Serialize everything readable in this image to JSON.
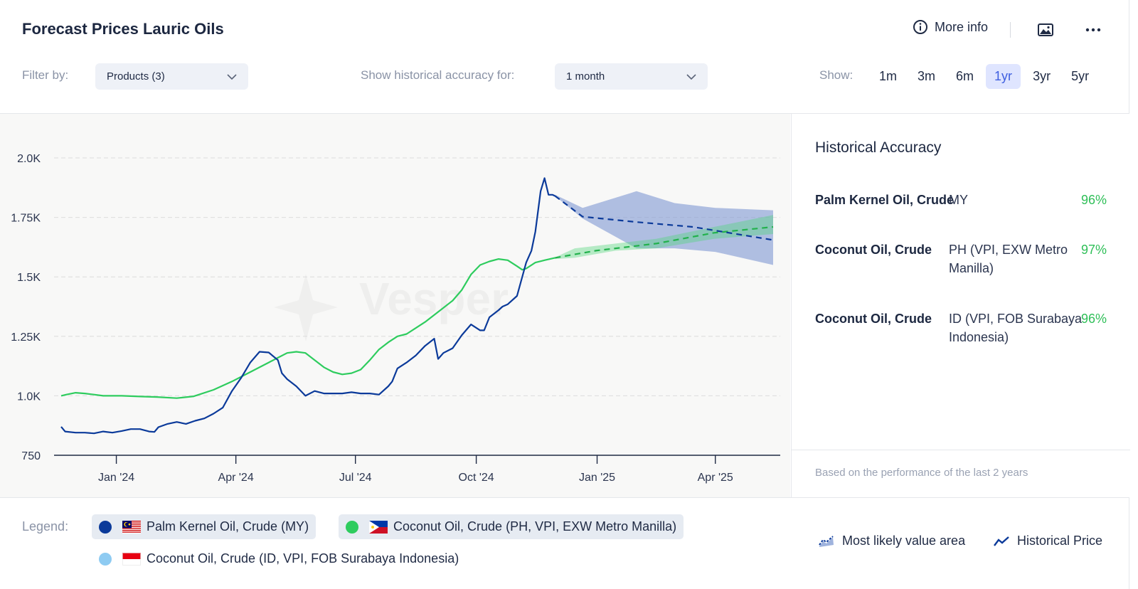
{
  "header": {
    "title": "Forecast Prices Lauric Oils",
    "more_info_label": "More info"
  },
  "filters": {
    "filter_by_label": "Filter by:",
    "products_value": "Products (3)",
    "accuracy_label": "Show historical accuracy for:",
    "accuracy_value": "1 month",
    "show_label": "Show:",
    "ranges": [
      "1m",
      "3m",
      "6m",
      "1yr",
      "3yr",
      "5yr"
    ],
    "active_range": "1yr"
  },
  "watermark": "Vesper",
  "accuracy_panel": {
    "title": "Historical Accuracy",
    "rows": [
      {
        "product": "Palm Kernel Oil, Crude",
        "region": "MY",
        "value": "96%"
      },
      {
        "product": "Coconut Oil, Crude",
        "region": "PH (VPI, EXW Metro Manilla)",
        "value": "97%"
      },
      {
        "product": "Coconut Oil, Crude",
        "region": "ID (VPI, FOB Surabaya Indonesia)",
        "value": "96%"
      }
    ],
    "footnote": "Based on the performance of the last 2 years"
  },
  "legend": {
    "label": "Legend:",
    "items": [
      {
        "label": "Palm Kernel Oil, Crude (MY)",
        "color": "#0b3a9a",
        "selected": true,
        "flag": "malaysia-flag"
      },
      {
        "label": "Coconut Oil, Crude (PH, VPI, EXW Metro Manilla)",
        "color": "#2ecc5e",
        "selected": true,
        "flag": "philippines-flag"
      },
      {
        "label": "Coconut Oil, Crude (ID, VPI, FOB Surabaya Indonesia)",
        "color": "#8ecbf2",
        "selected": false,
        "flag": "indonesia-flag"
      }
    ],
    "most_likely_label": "Most likely value area",
    "historical_label": "Historical Price"
  },
  "chart_data": {
    "type": "line",
    "x_ticks": [
      "Jan '24",
      "Apr '24",
      "Jul '24",
      "Oct '24",
      "Jan '25",
      "Apr '25"
    ],
    "y_ticks": [
      "750",
      "1.0K",
      "1.25K",
      "1.5K",
      "1.75K",
      "2.0K"
    ],
    "ylim": [
      750,
      2000
    ],
    "grid": true,
    "series": [
      {
        "name": "Palm Kernel Oil, Crude (MY)",
        "color": "#0b3a9a",
        "historical": [
          [
            "2023-11-20",
            870
          ],
          [
            "2023-11-23",
            850
          ],
          [
            "2023-12-01",
            845
          ],
          [
            "2023-12-08",
            845
          ],
          [
            "2023-12-15",
            842
          ],
          [
            "2023-12-22",
            850
          ],
          [
            "2023-12-29",
            845
          ],
          [
            "2024-01-05",
            852
          ],
          [
            "2024-01-12",
            860
          ],
          [
            "2024-01-19",
            860
          ],
          [
            "2024-01-26",
            850
          ],
          [
            "2024-01-30",
            848
          ],
          [
            "2024-02-02",
            868
          ],
          [
            "2024-02-09",
            882
          ],
          [
            "2024-02-16",
            890
          ],
          [
            "2024-02-23",
            882
          ],
          [
            "2024-03-01",
            895
          ],
          [
            "2024-03-08",
            905
          ],
          [
            "2024-03-15",
            925
          ],
          [
            "2024-03-22",
            950
          ],
          [
            "2024-03-29",
            1020
          ],
          [
            "2024-04-05",
            1075
          ],
          [
            "2024-04-12",
            1140
          ],
          [
            "2024-04-19",
            1185
          ],
          [
            "2024-04-26",
            1182
          ],
          [
            "2024-05-03",
            1150
          ],
          [
            "2024-05-06",
            1095
          ],
          [
            "2024-05-10",
            1070
          ],
          [
            "2024-05-17",
            1040
          ],
          [
            "2024-05-24",
            1000
          ],
          [
            "2024-05-31",
            1020
          ],
          [
            "2024-06-07",
            1010
          ],
          [
            "2024-06-14",
            1010
          ],
          [
            "2024-06-21",
            1010
          ],
          [
            "2024-06-28",
            1015
          ],
          [
            "2024-07-05",
            1010
          ],
          [
            "2024-07-12",
            1010
          ],
          [
            "2024-07-19",
            1005
          ],
          [
            "2024-07-26",
            1040
          ],
          [
            "2024-07-29",
            1060
          ],
          [
            "2024-08-02",
            1115
          ],
          [
            "2024-08-09",
            1140
          ],
          [
            "2024-08-16",
            1170
          ],
          [
            "2024-08-23",
            1210
          ],
          [
            "2024-08-30",
            1240
          ],
          [
            "2024-09-02",
            1155
          ],
          [
            "2024-09-06",
            1180
          ],
          [
            "2024-09-13",
            1200
          ],
          [
            "2024-09-20",
            1255
          ],
          [
            "2024-09-27",
            1300
          ],
          [
            "2024-10-04",
            1275
          ],
          [
            "2024-10-07",
            1275
          ],
          [
            "2024-10-11",
            1330
          ],
          [
            "2024-10-18",
            1360
          ],
          [
            "2024-10-21",
            1375
          ],
          [
            "2024-10-25",
            1385
          ],
          [
            "2024-11-01",
            1420
          ],
          [
            "2024-11-08",
            1560
          ],
          [
            "2024-11-12",
            1610
          ],
          [
            "2024-11-15",
            1690
          ],
          [
            "2024-11-19",
            1860
          ],
          [
            "2024-11-22",
            1915
          ],
          [
            "2024-11-25",
            1845
          ],
          [
            "2024-11-28",
            1845
          ],
          [
            "2024-11-30",
            1840
          ]
        ],
        "forecast": [
          [
            "2024-11-30",
            1840
          ],
          [
            "2024-12-21",
            1753
          ],
          [
            "2025-02-01",
            1730
          ],
          [
            "2025-03-15",
            1710
          ],
          [
            "2025-05-15",
            1655
          ]
        ],
        "band_upper": [
          [
            "2024-11-30",
            1845
          ],
          [
            "2024-12-21",
            1790
          ],
          [
            "2025-01-31",
            1860
          ],
          [
            "2025-03-01",
            1810
          ],
          [
            "2025-04-01",
            1790
          ],
          [
            "2025-05-15",
            1780
          ]
        ],
        "band_lower": [
          [
            "2024-11-30",
            1840
          ],
          [
            "2024-12-21",
            1745
          ],
          [
            "2025-01-31",
            1620
          ],
          [
            "2025-03-01",
            1620
          ],
          [
            "2025-04-01",
            1605
          ],
          [
            "2025-05-15",
            1550
          ]
        ]
      },
      {
        "name": "Coconut Oil, Crude (PH, VPI, EXW Metro Manilla)",
        "color": "#2ecc5e",
        "historical": [
          [
            "2023-11-20",
            1000
          ],
          [
            "2023-11-24",
            1005
          ],
          [
            "2023-12-01",
            1013
          ],
          [
            "2023-12-08",
            1010
          ],
          [
            "2023-12-15",
            1005
          ],
          [
            "2023-12-22",
            1000
          ],
          [
            "2024-01-05",
            1000
          ],
          [
            "2024-01-19",
            997
          ],
          [
            "2024-02-01",
            995
          ],
          [
            "2024-02-16",
            990
          ],
          [
            "2024-02-29",
            998
          ],
          [
            "2024-03-15",
            1025
          ],
          [
            "2024-03-29",
            1060
          ],
          [
            "2024-04-12",
            1100
          ],
          [
            "2024-04-26",
            1140
          ],
          [
            "2024-05-03",
            1160
          ],
          [
            "2024-05-10",
            1180
          ],
          [
            "2024-05-17",
            1185
          ],
          [
            "2024-05-24",
            1180
          ],
          [
            "2024-05-31",
            1150
          ],
          [
            "2024-06-07",
            1120
          ],
          [
            "2024-06-14",
            1100
          ],
          [
            "2024-06-21",
            1090
          ],
          [
            "2024-06-28",
            1095
          ],
          [
            "2024-07-05",
            1110
          ],
          [
            "2024-07-12",
            1150
          ],
          [
            "2024-07-19",
            1195
          ],
          [
            "2024-07-26",
            1225
          ],
          [
            "2024-08-02",
            1250
          ],
          [
            "2024-08-09",
            1260
          ],
          [
            "2024-08-16",
            1285
          ],
          [
            "2024-08-23",
            1310
          ],
          [
            "2024-08-30",
            1340
          ],
          [
            "2024-09-06",
            1370
          ],
          [
            "2024-09-13",
            1400
          ],
          [
            "2024-09-20",
            1445
          ],
          [
            "2024-09-27",
            1510
          ],
          [
            "2024-10-04",
            1550
          ],
          [
            "2024-10-11",
            1565
          ],
          [
            "2024-10-18",
            1575
          ],
          [
            "2024-10-25",
            1570
          ],
          [
            "2024-11-01",
            1545
          ],
          [
            "2024-11-05",
            1530
          ],
          [
            "2024-11-08",
            1535
          ],
          [
            "2024-11-15",
            1560
          ],
          [
            "2024-11-22",
            1570
          ],
          [
            "2024-11-30",
            1580
          ]
        ],
        "forecast": [
          [
            "2024-11-30",
            1580
          ],
          [
            "2024-12-31",
            1610
          ],
          [
            "2025-02-15",
            1640
          ],
          [
            "2025-03-31",
            1685
          ],
          [
            "2025-05-15",
            1710
          ]
        ],
        "band_upper": [
          [
            "2024-11-30",
            1582
          ],
          [
            "2024-12-15",
            1620
          ],
          [
            "2025-01-15",
            1640
          ],
          [
            "2025-02-15",
            1660
          ],
          [
            "2025-03-31",
            1710
          ],
          [
            "2025-05-15",
            1760
          ]
        ],
        "band_lower": [
          [
            "2024-11-30",
            1575
          ],
          [
            "2024-12-15",
            1580
          ],
          [
            "2025-01-15",
            1610
          ],
          [
            "2025-02-15",
            1620
          ],
          [
            "2025-03-31",
            1660
          ],
          [
            "2025-05-15",
            1680
          ]
        ]
      }
    ]
  }
}
